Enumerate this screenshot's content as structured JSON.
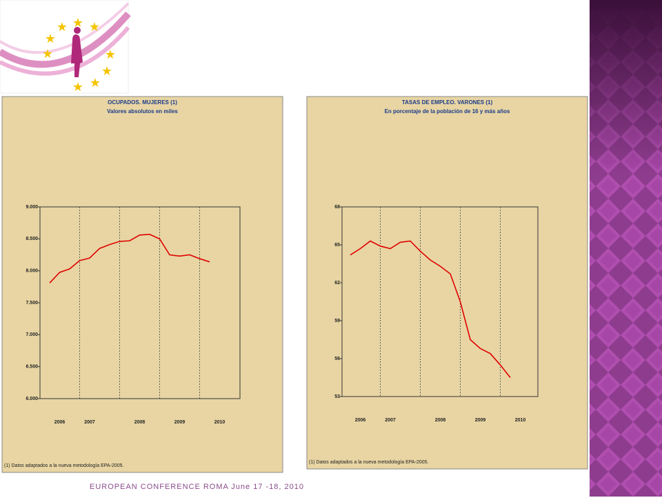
{
  "chart_data": [
    {
      "type": "line",
      "title": "OCUPADOS. MUJERES (1)",
      "subtitle": "Valores absolutos en miles",
      "categories": [
        null,
        "2006",
        null,
        null,
        "2007",
        null,
        null,
        null,
        null,
        "2008",
        null,
        null,
        null,
        "2009",
        null,
        null,
        null,
        "2010"
      ],
      "series": [
        {
          "name": "Ocupados mujeres",
          "color": "#e00000",
          "values": [
            7810,
            7975,
            8030,
            8160,
            8200,
            8350,
            8410,
            8460,
            8470,
            8560,
            8570,
            8500,
            8250,
            8230,
            8250,
            8190,
            8140,
            null
          ]
        }
      ],
      "ylim": [
        6000,
        9000
      ],
      "yticks": [
        {
          "value": 6000,
          "label": "6.000"
        },
        {
          "value": 6500,
          "label": "6.500"
        },
        {
          "value": 7000,
          "label": "7.000"
        },
        {
          "value": 7500,
          "label": "7.500"
        },
        {
          "value": 8000,
          "label": "8.000"
        },
        {
          "value": 8500,
          "label": "8.500"
        },
        {
          "value": 9000,
          "label": "9.000"
        }
      ],
      "note": "(1) Datos adaptados a la nueva metodología EPA-2005."
    },
    {
      "type": "line",
      "title": "TASAS DE EMPLEO. VARONES (1)",
      "subtitle": "En porcentaje de la población de 16 y más años",
      "categories": [
        null,
        "2006",
        null,
        null,
        "2007",
        null,
        null,
        null,
        null,
        "2008",
        null,
        null,
        null,
        "2009",
        null,
        null,
        null,
        "2010"
      ],
      "series": [
        {
          "name": "Tasa de empleo varones",
          "color": "#e00000",
          "values": [
            64.2,
            64.7,
            65.3,
            64.9,
            64.7,
            65.2,
            65.3,
            64.5,
            63.8,
            63.3,
            62.7,
            60.5,
            57.5,
            56.8,
            56.4,
            55.5,
            54.5,
            null
          ]
        }
      ],
      "ylim": [
        53,
        68
      ],
      "yticks": [
        53,
        56,
        59,
        62,
        65,
        68
      ],
      "note": "(1) Datos adaptados a la nueva metodología EPA-2005."
    }
  ],
  "footer": "EUROPEAN CONFERENCE ROMA June 17 -18, 2010"
}
